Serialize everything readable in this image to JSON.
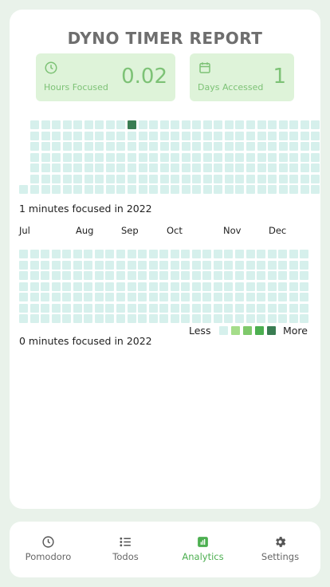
{
  "report": {
    "title": "DYNO TIMER REPORT",
    "hours_focused": {
      "label": "Hours Focused",
      "value": "0.02",
      "icon": "clock-icon"
    },
    "days_accessed": {
      "label": "Days Accessed",
      "value": "1",
      "icon": "calendar-icon"
    }
  },
  "heatmap_current": {
    "caption": "1 minutes focused in 2022",
    "active_cells": [
      {
        "week": 9,
        "day": 0,
        "level": 4
      }
    ]
  },
  "heatmap_previous": {
    "caption": "0 minutes focused in 2022",
    "months": [
      "Jul",
      "Aug",
      "Sep",
      "Oct",
      "Nov",
      "Dec"
    ]
  },
  "legend": {
    "less": "Less",
    "more": "More",
    "colors": [
      "#d6f0ec",
      "#a5dd8a",
      "#7fc96b",
      "#4caf50",
      "#3a7d52"
    ]
  },
  "nav": {
    "items": [
      {
        "label": "Pomodoro",
        "icon": "clock-icon"
      },
      {
        "label": "Todos",
        "icon": "list-icon"
      },
      {
        "label": "Analytics",
        "icon": "chart-icon",
        "active": true
      },
      {
        "label": "Settings",
        "icon": "gear-icon"
      }
    ]
  },
  "colors": {
    "accent": "#4caf50",
    "accent_light": "#7dc276",
    "stat_bg": "#def3d9",
    "cell_empty": "#d6f0ec",
    "cell_active": "#3a7d52"
  }
}
